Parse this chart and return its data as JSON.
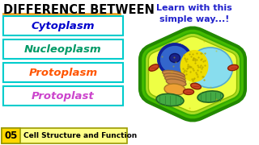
{
  "title": "DIFFERENCE BETWEEN",
  "title_color": "#000000",
  "title_underline_color": "#E8A020",
  "subtitle": "Learn with this\nsimple way...!",
  "subtitle_color": "#2222CC",
  "labels": [
    "Cytoplasm",
    "Nucleoplasm",
    "Protoplasm",
    "Protoplast"
  ],
  "label_colors": [
    "#0000CC",
    "#009966",
    "#FF5500",
    "#CC44CC"
  ],
  "box_border_color": "#00CCCC",
  "box_bg": "#FFFFFF",
  "bg_color": "#FFFFFF",
  "bottom_label": "05",
  "bottom_label_bg": "#FFD700",
  "bottom_text": "Cell Structure and Function",
  "bottom_text_color": "#000000",
  "bottom_bg": "#FFFF88",
  "cell_outer_color": "#44BB00",
  "cell_inner_color": "#CCEE44",
  "cell_wall_color": "#55CC00",
  "cytoplasm_color": "#EEFF44",
  "vacuole_color": "#88DDEE",
  "nucleus_outer": "#2255BB",
  "nucleus_inner": "#3366CC",
  "nucleolus_color": "#1133AA",
  "er_color": "#FFBB44",
  "golgi_color": "#CC9944",
  "chloroplast_color": "#44AA44",
  "chloroplast_border": "#226622",
  "mito_color": "#CC4422",
  "mito_border": "#882200",
  "dotfield_color": "#DDCC00"
}
